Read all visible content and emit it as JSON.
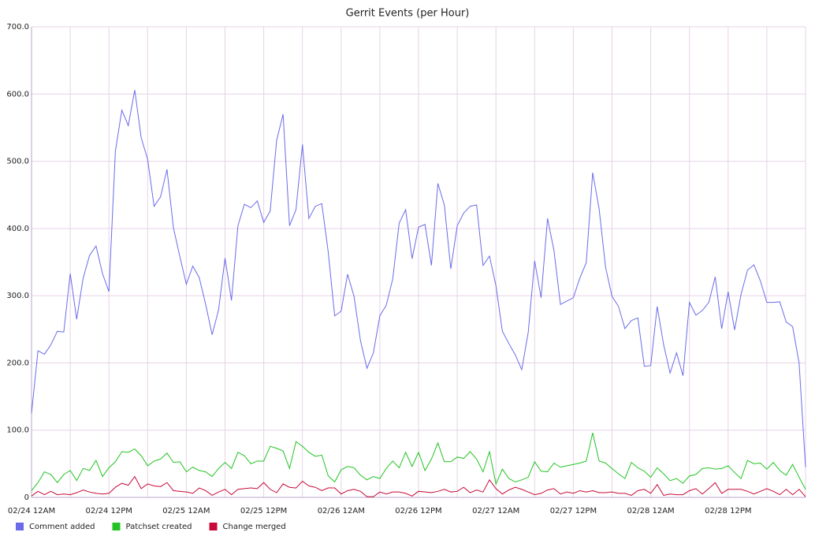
{
  "chart_data": {
    "type": "line",
    "title": "Gerrit Events (per Hour)",
    "categories": [
      "02/24 12AM",
      null,
      null,
      null,
      null,
      null,
      null,
      null,
      null,
      null,
      null,
      null,
      "02/24 12PM",
      null,
      null,
      null,
      null,
      null,
      null,
      null,
      null,
      null,
      null,
      null,
      "02/25 12AM",
      null,
      null,
      null,
      null,
      null,
      null,
      null,
      null,
      null,
      null,
      null,
      "02/25 12PM",
      null,
      null,
      null,
      null,
      null,
      null,
      null,
      null,
      null,
      null,
      null,
      "02/26 12AM",
      null,
      null,
      null,
      null,
      null,
      null,
      null,
      null,
      null,
      null,
      null,
      "02/26 12PM",
      null,
      null,
      null,
      null,
      null,
      null,
      null,
      null,
      null,
      null,
      null,
      "02/27 12AM",
      null,
      null,
      null,
      null,
      null,
      null,
      null,
      null,
      null,
      null,
      null,
      "02/27 12PM",
      null,
      null,
      null,
      null,
      null,
      null,
      null,
      null,
      null,
      null,
      null,
      "02/28 12AM",
      null,
      null,
      null,
      null,
      null,
      null,
      null,
      null,
      null,
      null,
      null,
      "02/28 12PM",
      null,
      null,
      null,
      null,
      null,
      null,
      null,
      null,
      null,
      null,
      null,
      null
    ],
    "series": [
      {
        "name": "Comment added",
        "color": "#6b6bea",
        "values": [
          125,
          218,
          213,
          227,
          247,
          246,
          333,
          265,
          326,
          360,
          374,
          333,
          306,
          515,
          576,
          553,
          606,
          535,
          503,
          433,
          447,
          488,
          401,
          358,
          317,
          344,
          327,
          287,
          242,
          279,
          356,
          293,
          404,
          436,
          431,
          441,
          409,
          426,
          531,
          570,
          404,
          428,
          525,
          415,
          433,
          437,
          365,
          270,
          277,
          332,
          299,
          233,
          192,
          215,
          270,
          286,
          325,
          408,
          428,
          355,
          402,
          406,
          345,
          467,
          435,
          340,
          404,
          423,
          433,
          435,
          345,
          359,
          315,
          247,
          229,
          212,
          190,
          245,
          352,
          297,
          415,
          367,
          287,
          292,
          297,
          326,
          349,
          483,
          429,
          342,
          299,
          284,
          251,
          263,
          267,
          195,
          196,
          284,
          227,
          185,
          215,
          181,
          290,
          271,
          278,
          290,
          328,
          251,
          306,
          249,
          302,
          338,
          346,
          322,
          290,
          290,
          291,
          261,
          254,
          200,
          45
        ]
      },
      {
        "name": "Patchset created",
        "color": "#22c322",
        "values": [
          10,
          22,
          38,
          34,
          22,
          34,
          40,
          25,
          43,
          40,
          55,
          31,
          44,
          53,
          68,
          67,
          72,
          62,
          47,
          54,
          57,
          66,
          52,
          53,
          38,
          45,
          40,
          38,
          31,
          43,
          52,
          43,
          67,
          62,
          50,
          54,
          54,
          76,
          73,
          69,
          43,
          83,
          76,
          67,
          61,
          63,
          32,
          23,
          41,
          46,
          44,
          33,
          26,
          31,
          28,
          43,
          54,
          44,
          67,
          46,
          67,
          40,
          57,
          81,
          53,
          53,
          60,
          58,
          68,
          57,
          38,
          68,
          20,
          42,
          28,
          23,
          26,
          30,
          53,
          39,
          38,
          51,
          45,
          47,
          49,
          51,
          54,
          96,
          54,
          51,
          43,
          35,
          28,
          52,
          44,
          39,
          30,
          44,
          35,
          25,
          28,
          21,
          32,
          34,
          43,
          44,
          42,
          43,
          47,
          37,
          28,
          55,
          50,
          51,
          42,
          52,
          40,
          33,
          49,
          30,
          12
        ]
      },
      {
        "name": "Change merged",
        "color": "#c8093a",
        "values": [
          2,
          9,
          4,
          9,
          4,
          5,
          4,
          7,
          11,
          8,
          6,
          5,
          6,
          15,
          21,
          18,
          31,
          13,
          20,
          17,
          16,
          22,
          10,
          9,
          8,
          6,
          14,
          10,
          3,
          8,
          12,
          4,
          12,
          13,
          14,
          13,
          22,
          12,
          7,
          20,
          15,
          14,
          24,
          17,
          15,
          10,
          14,
          14,
          5,
          10,
          12,
          9,
          1,
          1,
          8,
          5,
          8,
          8,
          6,
          2,
          9,
          8,
          7,
          9,
          12,
          8,
          9,
          15,
          7,
          11,
          8,
          26,
          13,
          5,
          11,
          15,
          12,
          8,
          4,
          6,
          11,
          13,
          5,
          8,
          6,
          10,
          8,
          10,
          7,
          7,
          8,
          6,
          6,
          3,
          10,
          12,
          6,
          19,
          3,
          5,
          4,
          4,
          10,
          13,
          5,
          13,
          22,
          6,
          12,
          12,
          12,
          9,
          5,
          9,
          13,
          9,
          4,
          12,
          4,
          12,
          1
        ]
      }
    ],
    "ylim": [
      0,
      700
    ],
    "yticks": [
      0,
      {
        "value": 100,
        "label": "100.0"
      },
      {
        "value": 200,
        "label": "200.0"
      },
      {
        "value": 300,
        "label": "300.0"
      },
      {
        "value": 400,
        "label": "400.0"
      },
      {
        "value": 500,
        "label": "500.0"
      },
      {
        "value": 600,
        "label": "600.0"
      },
      {
        "value": 700,
        "label": "700.0"
      }
    ],
    "grid": true
  }
}
